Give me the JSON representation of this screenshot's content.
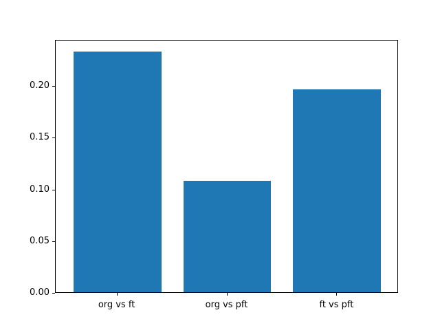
{
  "chart_data": {
    "type": "bar",
    "title": "",
    "xlabel": "",
    "ylabel": "",
    "categories": [
      "org vs ft",
      "org vs pft",
      "ft vs pft"
    ],
    "values": [
      0.233,
      0.108,
      0.196
    ],
    "bar_color": "#1f77b4",
    "axis_color": "#000000",
    "background_color": "#ffffff",
    "ylim": [
      0,
      0.2447
    ],
    "xlim": [
      -0.56,
      2.56
    ],
    "bar_width": 0.8,
    "yticks": [
      0.0,
      0.05,
      0.1,
      0.15,
      0.2
    ],
    "ytick_labels": [
      "0.00",
      "0.05",
      "0.10",
      "0.15",
      "0.20"
    ],
    "grid": false,
    "legend": null
  }
}
